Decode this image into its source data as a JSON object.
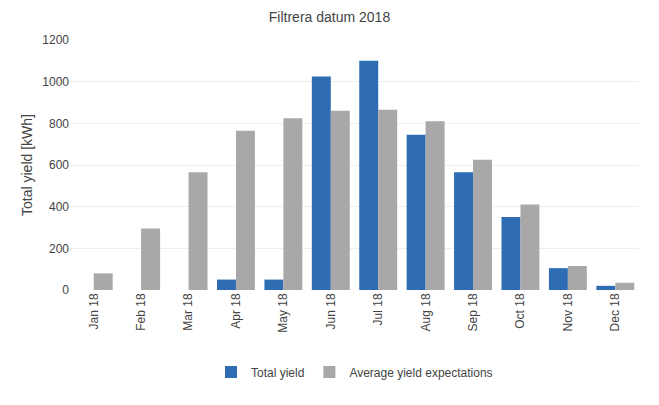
{
  "chart_data": {
    "type": "bar",
    "title": "Filtrera datum 2018",
    "ylabel": "Total yield [kWh]",
    "categories": [
      "Jan 18",
      "Feb 18",
      "Mar 18",
      "Apr 18",
      "May 18",
      "Jun 18",
      "Jul 18",
      "Aug 18",
      "Sep 18",
      "Oct 18",
      "Nov 18",
      "Dec 18"
    ],
    "series": [
      {
        "name": "Total yield",
        "color": "#2e6db4",
        "values": [
          0,
          0,
          0,
          50,
          50,
          1025,
          1100,
          745,
          565,
          350,
          105,
          20
        ]
      },
      {
        "name": "Average yield expectations",
        "color": "#a8a8a8",
        "values": [
          80,
          295,
          565,
          765,
          825,
          860,
          865,
          810,
          625,
          410,
          115,
          35
        ]
      }
    ],
    "ylim": [
      0,
      1200
    ],
    "yticks": [
      0,
      200,
      400,
      600,
      800,
      1000,
      1200
    ],
    "grid": true,
    "legend": "bottom"
  }
}
